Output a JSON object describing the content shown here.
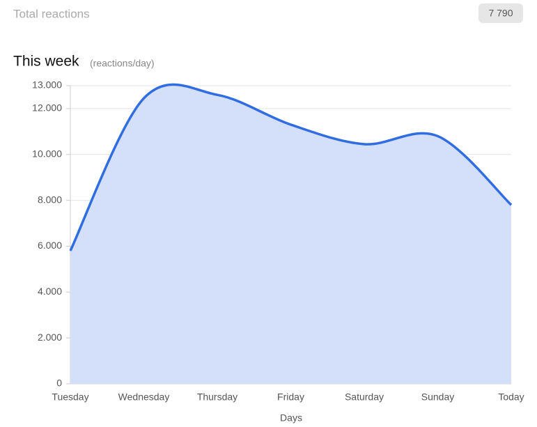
{
  "header": {
    "label": "Total reactions",
    "badge": "7 790"
  },
  "chart_data": {
    "type": "area",
    "title": "This week",
    "subtitle": "(reactions/day)",
    "x_label": "Days",
    "categories": [
      "Tuesday",
      "Wednesday",
      "Thursday",
      "Friday",
      "Saturday",
      "Sunday",
      "Today"
    ],
    "series": [
      {
        "name": "Reactions",
        "color": "#2f6de1",
        "fill": "#d4e0fa",
        "values": [
          5800,
          12450,
          12600,
          11300,
          10450,
          10800,
          7800
        ]
      }
    ],
    "ylim": [
      0,
      13000
    ],
    "yticks": [
      0,
      {
        "value": 2000,
        "label": "2.000"
      },
      {
        "value": 4000,
        "label": "4.000"
      },
      {
        "value": 6000,
        "label": "6.000"
      },
      {
        "value": 8000,
        "label": "8.000"
      },
      {
        "value": 10000,
        "label": "10.000"
      },
      {
        "value": 12000,
        "label": "12.000"
      },
      {
        "value": 13000,
        "label": "13.000"
      }
    ],
    "grid": true,
    "smooth": true
  }
}
